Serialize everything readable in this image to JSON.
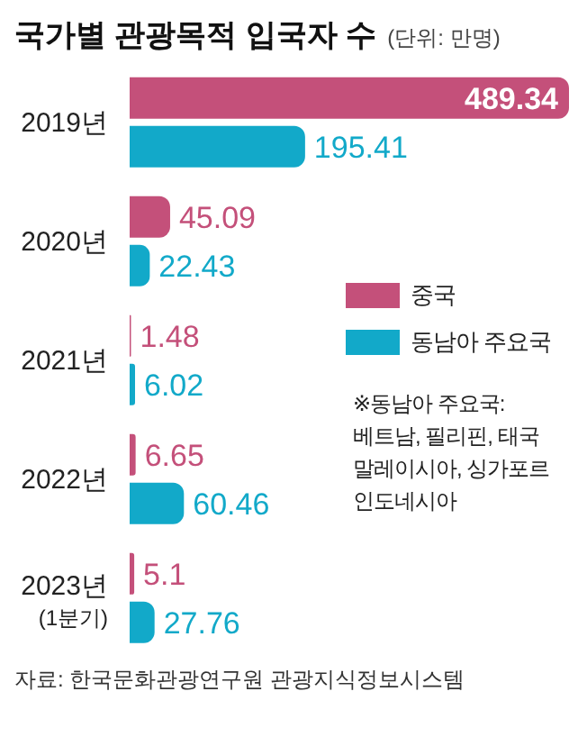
{
  "chart_data": {
    "type": "bar",
    "orientation": "horizontal",
    "title": "국가별 관광목적 입국자 수",
    "subtitle": "(단위: 만명)",
    "categories": [
      "2019년",
      "2020년",
      "2021년",
      "2022년",
      "2023년\n(1분기)"
    ],
    "series": [
      {
        "name": "중국",
        "color": "#c4507a",
        "values": [
          489.34,
          45.09,
          1.48,
          6.65,
          5.1
        ]
      },
      {
        "name": "동남아 주요국",
        "color": "#12a9c9",
        "values": [
          195.41,
          22.43,
          6.02,
          60.46,
          27.76
        ]
      }
    ],
    "data_labels": true,
    "legend": "right",
    "grid": false,
    "annotations": [
      "※동남아 주요국:\n베트남, 필리핀, 태국\n말레이시아, 싱가포르\n인도네시아",
      "자료: 한국문화관광연구원 관광지식정보시스템"
    ]
  }
}
